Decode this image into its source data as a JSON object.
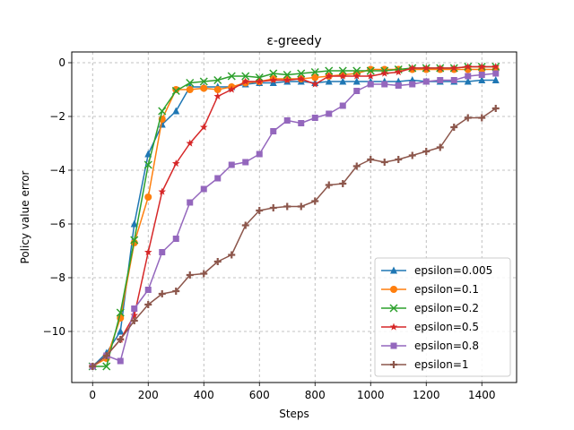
{
  "chart_data": {
    "type": "line",
    "title": "ε-greedy",
    "xlabel": "Steps",
    "ylabel": "Policy value error",
    "xlim": [
      -75,
      1525
    ],
    "ylim": [
      -11.9,
      0.4
    ],
    "xticks": [
      0,
      200,
      400,
      600,
      800,
      1000,
      1200,
      1400
    ],
    "yticks": [
      -10,
      -8,
      -6,
      -4,
      -2,
      0
    ],
    "grid": true,
    "legend_position": "lower-right",
    "x": [
      0,
      50,
      100,
      150,
      200,
      250,
      300,
      350,
      400,
      450,
      500,
      550,
      600,
      650,
      700,
      750,
      800,
      850,
      900,
      950,
      1000,
      1050,
      1100,
      1150,
      1200,
      1250,
      1300,
      1350,
      1400,
      1450
    ],
    "series": [
      {
        "name": "epsilon=0.005",
        "color": "#1f77b4",
        "marker": "triangle",
        "values": [
          -11.3,
          -10.8,
          -10.0,
          -6.0,
          -3.4,
          -2.3,
          -1.8,
          -0.9,
          -0.9,
          -0.9,
          -0.9,
          -0.8,
          -0.75,
          -0.75,
          -0.7,
          -0.7,
          -0.75,
          -0.7,
          -0.7,
          -0.7,
          -0.7,
          -0.7,
          -0.7,
          -0.65,
          -0.7,
          -0.7,
          -0.7,
          -0.7,
          -0.65,
          -0.65
        ]
      },
      {
        "name": "epsilon=0.1",
        "color": "#ff7f0e",
        "marker": "circle",
        "values": [
          -11.3,
          -11.0,
          -9.5,
          -6.7,
          -5.0,
          -2.1,
          -1.0,
          -1.0,
          -0.95,
          -1.0,
          -0.9,
          -0.75,
          -0.7,
          -0.6,
          -0.6,
          -0.6,
          -0.55,
          -0.5,
          -0.45,
          -0.4,
          -0.25,
          -0.25,
          -0.25,
          -0.25,
          -0.25,
          -0.25,
          -0.25,
          -0.25,
          -0.25,
          -0.25
        ]
      },
      {
        "name": "epsilon=0.2",
        "color": "#2ca02c",
        "marker": "x",
        "values": [
          -11.3,
          -11.3,
          -9.3,
          -6.6,
          -3.8,
          -1.8,
          -1.05,
          -0.75,
          -0.7,
          -0.65,
          -0.5,
          -0.5,
          -0.55,
          -0.4,
          -0.45,
          -0.4,
          -0.35,
          -0.3,
          -0.3,
          -0.3,
          -0.3,
          -0.3,
          -0.25,
          -0.2,
          -0.2,
          -0.2,
          -0.2,
          -0.15,
          -0.15,
          -0.15
        ]
      },
      {
        "name": "epsilon=0.5",
        "color": "#d62728",
        "marker": "star",
        "values": [
          -11.3,
          -10.9,
          -10.3,
          -9.4,
          -7.05,
          -4.8,
          -3.75,
          -3.0,
          -2.4,
          -1.25,
          -1.0,
          -0.7,
          -0.7,
          -0.65,
          -0.65,
          -0.6,
          -0.8,
          -0.5,
          -0.5,
          -0.5,
          -0.5,
          -0.4,
          -0.35,
          -0.2,
          -0.2,
          -0.2,
          -0.2,
          -0.15,
          -0.15,
          -0.15
        ]
      },
      {
        "name": "epsilon=0.8",
        "color": "#9467bd",
        "marker": "square",
        "values": [
          -11.3,
          -10.9,
          -11.1,
          -9.15,
          -8.45,
          -7.05,
          -6.55,
          -5.2,
          -4.7,
          -4.3,
          -3.8,
          -3.7,
          -3.4,
          -2.55,
          -2.15,
          -2.25,
          -2.05,
          -1.9,
          -1.6,
          -1.05,
          -0.8,
          -0.8,
          -0.85,
          -0.8,
          -0.7,
          -0.65,
          -0.65,
          -0.5,
          -0.45,
          -0.4
        ]
      },
      {
        "name": "epsilon=1",
        "color": "#8c564b",
        "marker": "plus",
        "values": [
          -11.3,
          -10.9,
          -10.3,
          -9.6,
          -9.0,
          -8.6,
          -8.5,
          -7.9,
          -7.85,
          -7.4,
          -7.15,
          -6.05,
          -5.5,
          -5.4,
          -5.35,
          -5.35,
          -5.15,
          -4.55,
          -4.5,
          -3.85,
          -3.6,
          -3.7,
          -3.6,
          -3.45,
          -3.3,
          -3.15,
          -2.4,
          -2.05,
          -2.05,
          -1.7
        ]
      }
    ]
  }
}
